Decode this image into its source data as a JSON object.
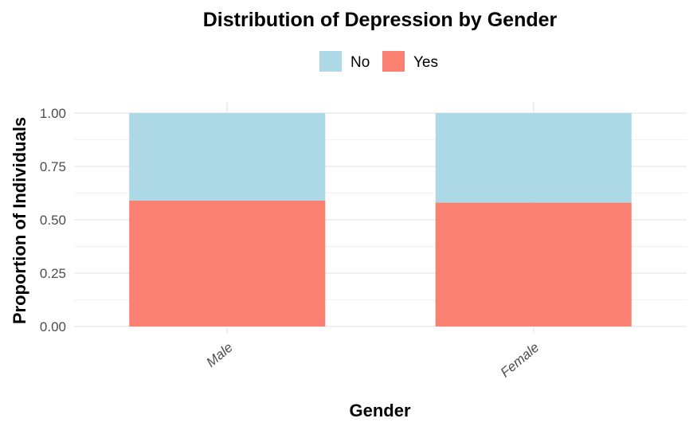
{
  "chart_data": {
    "type": "bar",
    "stacked": true,
    "title": "Distribution of Depression by Gender",
    "xlabel": "Gender",
    "ylabel": "Proportion of Individuals",
    "categories": [
      "Male",
      "Female"
    ],
    "series": [
      {
        "name": "No",
        "color": "#add8e6",
        "values": [
          0.41,
          0.42
        ]
      },
      {
        "name": "Yes",
        "color": "#fa8072",
        "values": [
          0.59,
          0.58
        ]
      }
    ],
    "ylim": [
      0,
      1
    ],
    "yticks": [
      0,
      0.25,
      0.5,
      0.75,
      1
    ],
    "ytick_labels": [
      "0.00",
      "0.25",
      "0.50",
      "0.75",
      "1.00"
    ],
    "legend_position": "top",
    "grid": true
  }
}
